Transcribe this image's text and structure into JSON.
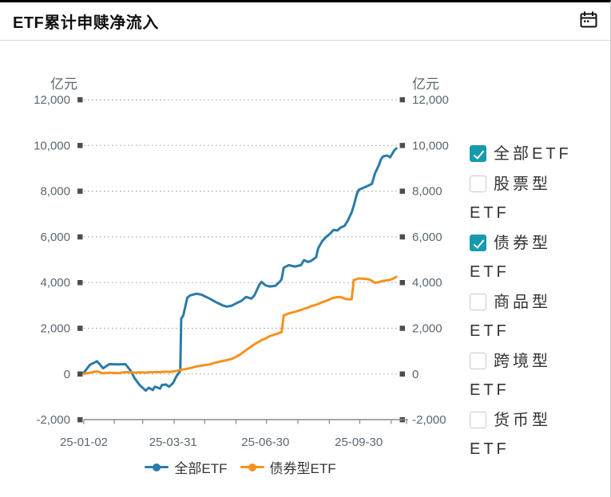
{
  "header": {
    "title": "ETF累计申赎净流入"
  },
  "chart_data": {
    "type": "line",
    "title": "ETF累计申赎净流入",
    "unit": "亿元",
    "ylim": [
      -2000,
      12000
    ],
    "grid": "dotted-horizontal",
    "legend_position": "bottom",
    "yticks": [
      {
        "value": 12000,
        "label": "12,000"
      },
      {
        "value": 10000,
        "label": "10,000"
      },
      {
        "value": 8000,
        "label": "8,000"
      },
      {
        "value": 6000,
        "label": "6,000"
      },
      {
        "value": 4000,
        "label": "4,000"
      },
      {
        "value": 2000,
        "label": "2,000"
      },
      {
        "value": 0,
        "label": "0"
      },
      {
        "value": -2000,
        "label": "-2,000"
      }
    ],
    "xticks": [
      {
        "date": "2025-01-02",
        "label": "25-01-02"
      },
      {
        "date": "2025-03-31",
        "label": "25-03-31"
      },
      {
        "date": "2025-06-30",
        "label": "25-06-30"
      },
      {
        "date": "2025-09-30",
        "label": "25-09-30"
      }
    ],
    "month_tick_dates": [
      "2025-01-02",
      "2025-02-01",
      "2025-03-01",
      "2025-04-01",
      "2025-05-01",
      "2025-06-01",
      "2025-07-01",
      "2025-08-01",
      "2025-09-01",
      "2025-10-01",
      "2025-11-01"
    ],
    "dates": [
      "2025-01-02",
      "2025-01-08",
      "2025-01-15",
      "2025-01-21",
      "2025-01-27",
      "2025-02-05",
      "2025-02-12",
      "2025-02-17",
      "2025-02-21",
      "2025-02-26",
      "2025-03-04",
      "2025-03-07",
      "2025-03-11",
      "2025-03-13",
      "2025-03-18",
      "2025-03-20",
      "2025-03-24",
      "2025-03-27",
      "2025-03-31",
      "2025-04-03",
      "2025-04-07",
      "2025-04-08",
      "2025-04-10",
      "2025-04-14",
      "2025-04-17",
      "2025-04-23",
      "2025-04-28",
      "2025-05-06",
      "2025-05-12",
      "2025-05-19",
      "2025-05-23",
      "2025-05-28",
      "2025-06-03",
      "2025-06-06",
      "2025-06-11",
      "2025-06-16",
      "2025-06-19",
      "2025-06-24",
      "2025-06-26",
      "2025-06-30",
      "2025-07-04",
      "2025-07-10",
      "2025-07-15",
      "2025-07-16",
      "2025-07-18",
      "2025-07-23",
      "2025-07-29",
      "2025-08-04",
      "2025-08-07",
      "2025-08-11",
      "2025-08-14",
      "2025-08-19",
      "2025-08-21",
      "2025-08-25",
      "2025-08-29",
      "2025-09-02",
      "2025-09-05",
      "2025-09-09",
      "2025-09-12",
      "2025-09-16",
      "2025-09-19",
      "2025-09-23",
      "2025-09-25",
      "2025-09-28",
      "2025-09-30",
      "2025-10-09",
      "2025-10-13",
      "2025-10-16",
      "2025-10-20",
      "2025-10-22",
      "2025-10-24",
      "2025-10-28",
      "2025-10-31",
      "2025-11-04",
      "2025-11-06"
    ],
    "series": [
      {
        "name": "全部ETF",
        "color": "#2b7ba7",
        "values": [
          60,
          400,
          560,
          250,
          430,
          420,
          430,
          150,
          -180,
          -480,
          -730,
          -600,
          -700,
          -550,
          -640,
          -480,
          -460,
          -560,
          -390,
          -120,
          140,
          2420,
          2560,
          3340,
          3440,
          3510,
          3470,
          3300,
          3150,
          3000,
          2950,
          2990,
          3130,
          3190,
          3370,
          3300,
          3430,
          3900,
          4030,
          3880,
          3830,
          3860,
          4080,
          4150,
          4650,
          4760,
          4700,
          4760,
          4980,
          4900,
          4950,
          5110,
          5500,
          5810,
          6000,
          6150,
          6300,
          6280,
          6400,
          6480,
          6690,
          7070,
          7350,
          7850,
          8060,
          8230,
          8320,
          8780,
          9150,
          9400,
          9520,
          9560,
          9480,
          9780,
          9870
        ]
      },
      {
        "name": "债券型ETF",
        "color": "#f6911e",
        "values": [
          10,
          60,
          110,
          30,
          60,
          40,
          80,
          70,
          60,
          70,
          60,
          80,
          70,
          90,
          80,
          90,
          100,
          90,
          110,
          130,
          170,
          190,
          200,
          230,
          260,
          330,
          370,
          420,
          500,
          570,
          610,
          660,
          800,
          880,
          1050,
          1200,
          1300,
          1420,
          1480,
          1550,
          1650,
          1740,
          1820,
          1830,
          2560,
          2650,
          2720,
          2800,
          2850,
          2900,
          2970,
          3030,
          3060,
          3140,
          3200,
          3280,
          3330,
          3360,
          3370,
          3300,
          3270,
          3270,
          4100,
          4150,
          4180,
          4150,
          4080,
          3990,
          4020,
          4050,
          4070,
          4100,
          4120,
          4200,
          4250
        ]
      }
    ]
  },
  "checkboxes": {
    "checked_color": "#189aad",
    "items": [
      {
        "label": "全部ETF",
        "checked": true
      },
      {
        "label": "股票型ETF",
        "checked": false
      },
      {
        "label": "债券型ETF",
        "checked": true
      },
      {
        "label": "商品型ETF",
        "checked": false
      },
      {
        "label": "跨境型ETF",
        "checked": false
      },
      {
        "label": "货币型ETF",
        "checked": false
      }
    ]
  }
}
